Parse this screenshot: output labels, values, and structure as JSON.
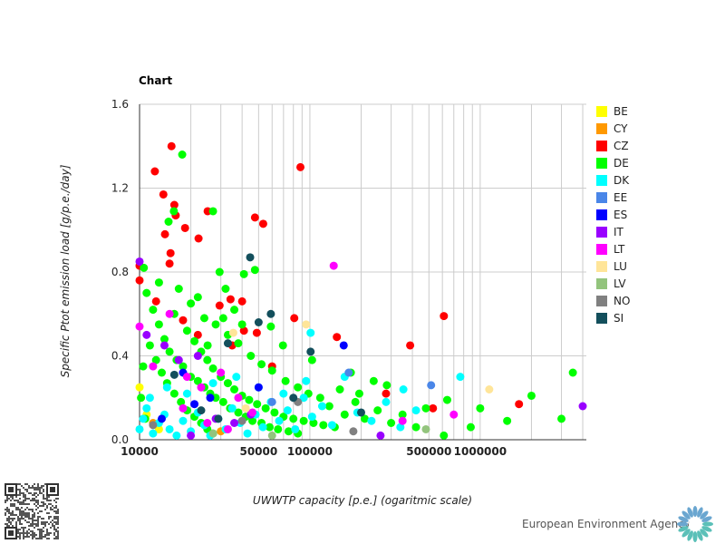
{
  "chart_data": {
    "type": "scatter",
    "title": "Chart",
    "xlabel": "UWWTP capacity [p.e.] (ogaritmic scale)",
    "ylabel": "Specific Ptot emission load [g/p.e./day]",
    "xscale": "log",
    "xlim": [
      10000,
      4200000
    ],
    "ylim": [
      0,
      1.6
    ],
    "xticks": [
      10000,
      50000,
      100000,
      500000,
      1000000
    ],
    "xtick_labels": [
      "10000",
      "50000",
      "100000",
      "500000",
      "1000000"
    ],
    "yticks": [
      0,
      0.4,
      0.8,
      1.2,
      1.6
    ],
    "ytick_labels": [
      "0.0",
      "0.4",
      "0.8",
      "1.2",
      "1.6"
    ],
    "grid": true,
    "legend_position": "right",
    "series": [
      {
        "name": "BE",
        "color": "#ffff00",
        "points": [
          [
            10000,
            0.25
          ],
          [
            11000,
            0.12
          ],
          [
            13000,
            0.05
          ]
        ]
      },
      {
        "name": "CY",
        "color": "#ff9900",
        "points": [
          [
            12000,
            0.08
          ],
          [
            30000,
            0.04
          ]
        ]
      },
      {
        "name": "CZ",
        "color": "#ff0000",
        "points": [
          [
            15400,
            1.4
          ],
          [
            12300,
            1.28
          ],
          [
            13800,
            1.17
          ],
          [
            16000,
            1.12
          ],
          [
            16300,
            1.07
          ],
          [
            25100,
            1.09
          ],
          [
            18500,
            1.01
          ],
          [
            22200,
            0.96
          ],
          [
            14100,
            0.98
          ],
          [
            88000,
            1.3
          ],
          [
            47600,
            1.06
          ],
          [
            53200,
            1.03
          ],
          [
            612000,
            0.59
          ],
          [
            388000,
            0.45
          ],
          [
            144000,
            0.49
          ],
          [
            1690000,
            0.17
          ],
          [
            15200,
            0.89
          ],
          [
            15000,
            0.84
          ],
          [
            10000,
            0.83
          ],
          [
            10000,
            0.76
          ],
          [
            81000,
            0.58
          ],
          [
            34200,
            0.67
          ],
          [
            40000,
            0.66
          ],
          [
            18000,
            0.57
          ],
          [
            48800,
            0.51
          ],
          [
            41000,
            0.52
          ],
          [
            528000,
            0.15
          ],
          [
            29500,
            0.64
          ],
          [
            22000,
            0.5
          ],
          [
            35000,
            0.45
          ],
          [
            60000,
            0.35
          ],
          [
            280000,
            0.22
          ],
          [
            12500,
            0.66
          ]
        ]
      },
      {
        "name": "DE",
        "color": "#00ff00",
        "points": [
          [
            17800,
            1.36
          ],
          [
            27000,
            1.09
          ],
          [
            14800,
            1.04
          ],
          [
            15900,
            1.09
          ],
          [
            3500000,
            0.32
          ],
          [
            3000000,
            0.1
          ],
          [
            2000000,
            0.21
          ],
          [
            1440000,
            0.09
          ],
          [
            1000000,
            0.15
          ],
          [
            880000,
            0.06
          ],
          [
            612000,
            0.02
          ],
          [
            640000,
            0.19
          ],
          [
            480000,
            0.15
          ],
          [
            237000,
            0.28
          ],
          [
            195000,
            0.22
          ],
          [
            283000,
            0.26
          ],
          [
            174000,
            0.32
          ],
          [
            103000,
            0.38
          ],
          [
            69500,
            0.45
          ],
          [
            59000,
            0.54
          ],
          [
            47600,
            0.81
          ],
          [
            41000,
            0.79
          ],
          [
            29500,
            0.8
          ],
          [
            10600,
            0.82
          ],
          [
            25100,
            0.45
          ],
          [
            11000,
            0.7
          ],
          [
            12000,
            0.62
          ],
          [
            13000,
            0.55
          ],
          [
            14000,
            0.48
          ],
          [
            15000,
            0.42
          ],
          [
            16500,
            0.38
          ],
          [
            18000,
            0.35
          ],
          [
            20000,
            0.3
          ],
          [
            22000,
            0.28
          ],
          [
            24000,
            0.25
          ],
          [
            26000,
            0.22
          ],
          [
            28000,
            0.2
          ],
          [
            31000,
            0.18
          ],
          [
            34000,
            0.15
          ],
          [
            38000,
            0.13
          ],
          [
            42000,
            0.11
          ],
          [
            46000,
            0.09
          ],
          [
            52000,
            0.08
          ],
          [
            58000,
            0.06
          ],
          [
            65000,
            0.05
          ],
          [
            75000,
            0.04
          ],
          [
            85000,
            0.03
          ],
          [
            11500,
            0.45
          ],
          [
            12500,
            0.38
          ],
          [
            13500,
            0.32
          ],
          [
            14500,
            0.27
          ],
          [
            16000,
            0.22
          ],
          [
            17500,
            0.18
          ],
          [
            19000,
            0.14
          ],
          [
            21000,
            0.11
          ],
          [
            23000,
            0.08
          ],
          [
            25000,
            0.05
          ],
          [
            27000,
            0.03
          ],
          [
            10500,
            0.35
          ],
          [
            10200,
            0.2
          ],
          [
            10800,
            0.1
          ],
          [
            19000,
            0.52
          ],
          [
            21000,
            0.47
          ],
          [
            23000,
            0.42
          ],
          [
            25000,
            0.38
          ],
          [
            27000,
            0.34
          ],
          [
            30000,
            0.3
          ],
          [
            33000,
            0.27
          ],
          [
            36000,
            0.24
          ],
          [
            40000,
            0.21
          ],
          [
            44000,
            0.19
          ],
          [
            49000,
            0.17
          ],
          [
            55000,
            0.15
          ],
          [
            62000,
            0.13
          ],
          [
            70000,
            0.11
          ],
          [
            80000,
            0.1
          ],
          [
            92000,
            0.09
          ],
          [
            105000,
            0.08
          ],
          [
            120000,
            0.07
          ],
          [
            140000,
            0.06
          ],
          [
            160000,
            0.12
          ],
          [
            185000,
            0.18
          ],
          [
            210000,
            0.1
          ],
          [
            250000,
            0.14
          ],
          [
            300000,
            0.08
          ],
          [
            350000,
            0.12
          ],
          [
            420000,
            0.06
          ],
          [
            16000,
            0.6
          ],
          [
            20000,
            0.65
          ],
          [
            24000,
            0.58
          ],
          [
            28000,
            0.55
          ],
          [
            33000,
            0.5
          ],
          [
            38000,
            0.46
          ],
          [
            45000,
            0.4
          ],
          [
            52000,
            0.36
          ],
          [
            60000,
            0.33
          ],
          [
            72000,
            0.28
          ],
          [
            85000,
            0.25
          ],
          [
            98000,
            0.22
          ],
          [
            115000,
            0.2
          ],
          [
            130000,
            0.16
          ],
          [
            150000,
            0.24
          ],
          [
            13000,
            0.75
          ],
          [
            17000,
            0.72
          ],
          [
            22000,
            0.68
          ],
          [
            31000,
            0.58
          ],
          [
            40000,
            0.55
          ],
          [
            32000,
            0.72
          ],
          [
            36000,
            0.62
          ]
        ]
      },
      {
        "name": "DK",
        "color": "#00ffff",
        "points": [
          [
            764000,
            0.3
          ],
          [
            101000,
            0.51
          ],
          [
            354000,
            0.24
          ],
          [
            10000,
            0.05
          ],
          [
            10500,
            0.1
          ],
          [
            11000,
            0.15
          ],
          [
            12000,
            0.03
          ],
          [
            13000,
            0.08
          ],
          [
            14000,
            0.12
          ],
          [
            15000,
            0.05
          ],
          [
            16500,
            0.02
          ],
          [
            18000,
            0.09
          ],
          [
            20000,
            0.04
          ],
          [
            22000,
            0.13
          ],
          [
            24000,
            0.07
          ],
          [
            26000,
            0.02
          ],
          [
            29000,
            0.1
          ],
          [
            32000,
            0.05
          ],
          [
            35000,
            0.15
          ],
          [
            39000,
            0.08
          ],
          [
            43000,
            0.03
          ],
          [
            48000,
            0.12
          ],
          [
            53000,
            0.06
          ],
          [
            59000,
            0.18
          ],
          [
            66000,
            0.09
          ],
          [
            74000,
            0.14
          ],
          [
            82000,
            0.05
          ],
          [
            92000,
            0.2
          ],
          [
            103000,
            0.11
          ],
          [
            118000,
            0.16
          ],
          [
            135000,
            0.07
          ],
          [
            160000,
            0.3
          ],
          [
            190000,
            0.13
          ],
          [
            230000,
            0.09
          ],
          [
            280000,
            0.18
          ],
          [
            340000,
            0.06
          ],
          [
            420000,
            0.14
          ],
          [
            11500,
            0.2
          ],
          [
            14500,
            0.25
          ],
          [
            19000,
            0.22
          ],
          [
            27000,
            0.27
          ],
          [
            37000,
            0.3
          ],
          [
            50000,
            0.25
          ],
          [
            70000,
            0.22
          ],
          [
            95000,
            0.28
          ]
        ]
      },
      {
        "name": "EE",
        "color": "#4a86e8",
        "points": [
          [
            515000,
            0.26
          ],
          [
            169000,
            0.32
          ],
          [
            60000,
            0.18
          ]
        ]
      },
      {
        "name": "ES",
        "color": "#0000ff",
        "points": [
          [
            158000,
            0.45
          ],
          [
            50000,
            0.25
          ],
          [
            18000,
            0.32
          ],
          [
            21000,
            0.17
          ],
          [
            13500,
            0.1
          ],
          [
            26000,
            0.2
          ]
        ]
      },
      {
        "name": "IT",
        "color": "#9900ff",
        "points": [
          [
            10000,
            0.85
          ],
          [
            4000000,
            0.16
          ],
          [
            14000,
            0.45
          ],
          [
            17000,
            0.38
          ],
          [
            22000,
            0.4
          ],
          [
            28000,
            0.1
          ],
          [
            36000,
            0.08
          ],
          [
            45000,
            0.12
          ],
          [
            260000,
            0.02
          ],
          [
            11000,
            0.5
          ],
          [
            20000,
            0.02
          ]
        ]
      },
      {
        "name": "LT",
        "color": "#ff00ff",
        "points": [
          [
            138000,
            0.83
          ],
          [
            10000,
            0.54
          ],
          [
            15000,
            0.6
          ],
          [
            19000,
            0.3
          ],
          [
            23000,
            0.25
          ],
          [
            30000,
            0.32
          ],
          [
            38000,
            0.2
          ],
          [
            46000,
            0.13
          ],
          [
            25000,
            0.08
          ],
          [
            33000,
            0.05
          ],
          [
            18000,
            0.15
          ],
          [
            12000,
            0.35
          ],
          [
            350000,
            0.09
          ],
          [
            700000,
            0.12
          ]
        ]
      },
      {
        "name": "LU",
        "color": "#ffe599",
        "points": [
          [
            1130000,
            0.24
          ],
          [
            95000,
            0.55
          ],
          [
            35500,
            0.51
          ],
          [
            42000,
            0.15
          ]
        ]
      },
      {
        "name": "LV",
        "color": "#93c47d",
        "points": [
          [
            480000,
            0.05
          ],
          [
            27000,
            0.03
          ],
          [
            60000,
            0.02
          ]
        ]
      },
      {
        "name": "NO",
        "color": "#808080",
        "points": [
          [
            85000,
            0.18
          ],
          [
            12000,
            0.07
          ],
          [
            40000,
            0.09
          ],
          [
            180000,
            0.04
          ]
        ]
      },
      {
        "name": "SI",
        "color": "#134f5c",
        "points": [
          [
            44600,
            0.87
          ],
          [
            59000,
            0.6
          ],
          [
            101000,
            0.42
          ],
          [
            50000,
            0.56
          ],
          [
            33000,
            0.46
          ],
          [
            16000,
            0.31
          ],
          [
            23000,
            0.14
          ],
          [
            29000,
            0.1
          ],
          [
            80000,
            0.2
          ],
          [
            200000,
            0.13
          ]
        ]
      }
    ]
  },
  "footer": {
    "agency": "European Environment Agency"
  }
}
